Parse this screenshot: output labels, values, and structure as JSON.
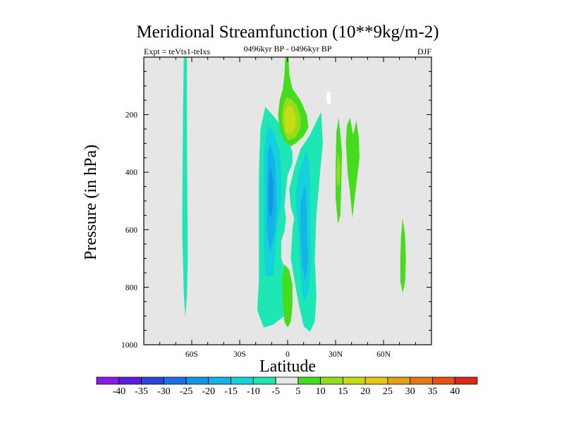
{
  "chart_data": {
    "type": "contour",
    "title": "Meridional Streamfunction (10**9kg/m-2)",
    "subtitle_left": "Expt = teVts1-teIxs",
    "subtitle_center": "0496kyr BP - 0496kyr BP",
    "subtitle_right": "DJF",
    "xlabel": "Latitude",
    "ylabel": "Pressure (in hPa)",
    "xlim": [
      -90,
      90
    ],
    "ylim": [
      1000,
      0
    ],
    "y_reversed": true,
    "x_ticks": [
      {
        "value": -60,
        "label": "60S"
      },
      {
        "value": -30,
        "label": "30S"
      },
      {
        "value": 0,
        "label": "0"
      },
      {
        "value": 30,
        "label": "30N"
      },
      {
        "value": 60,
        "label": "60N"
      }
    ],
    "y_ticks": [
      {
        "value": 200,
        "label": "200"
      },
      {
        "value": 400,
        "label": "400"
      },
      {
        "value": 600,
        "label": "600"
      },
      {
        "value": 800,
        "label": "800"
      },
      {
        "value": 1000,
        "label": "1000"
      }
    ],
    "background_color": "#e6e6e6",
    "colorbar": {
      "labels": [
        "-40",
        "-35",
        "-30",
        "-25",
        "-20",
        "-15",
        "-10",
        "-5",
        "5",
        "10",
        "15",
        "20",
        "25",
        "30",
        "35",
        "40"
      ],
      "colors": [
        "#8a1ae6",
        "#5a1edc",
        "#2a46dc",
        "#1e6ee6",
        "#1496e6",
        "#14b4e6",
        "#14d2dc",
        "#1ee6b4",
        "#e6e6e6",
        "#46dc1e",
        "#96dc1e",
        "#c8dc14",
        "#e6c814",
        "#e6a014",
        "#e67814",
        "#e65014",
        "#dc2814"
      ]
    },
    "features": [
      {
        "name": "neg-column-60S",
        "level": "-5 to -10",
        "color": "#1ee6b4",
        "points": [
          [
            -65,
            0
          ],
          [
            -63,
            0
          ],
          [
            -63,
            250
          ],
          [
            -62.5,
            700
          ],
          [
            -63,
            830
          ],
          [
            -64,
            907
          ],
          [
            -65,
            820
          ],
          [
            -66,
            600
          ],
          [
            -65.5,
            200
          ]
        ]
      },
      {
        "name": "neg-south-cell-outer",
        "level": "-5 to -10",
        "color": "#1ee6b4",
        "points": [
          [
            -14,
            173
          ],
          [
            -8,
            210
          ],
          [
            -4,
            240
          ],
          [
            0,
            285
          ],
          [
            3,
            330
          ],
          [
            3,
            370
          ],
          [
            0,
            410
          ],
          [
            -1,
            460
          ],
          [
            -2,
            520
          ],
          [
            -1,
            560
          ],
          [
            -2,
            605
          ],
          [
            -4,
            640
          ],
          [
            -4,
            700
          ],
          [
            0,
            760
          ],
          [
            3,
            820
          ],
          [
            2,
            860
          ],
          [
            -2,
            900
          ],
          [
            -9,
            930
          ],
          [
            -15,
            940
          ],
          [
            -19,
            880
          ],
          [
            -18,
            780
          ],
          [
            -18,
            600
          ],
          [
            -18,
            400
          ],
          [
            -17,
            250
          ]
        ]
      },
      {
        "name": "neg-south-cell-mid",
        "level": "-10 to -15",
        "color": "#14d2dc",
        "points": [
          [
            -12,
            235
          ],
          [
            -8,
            270
          ],
          [
            -5,
            330
          ],
          [
            -4,
            400
          ],
          [
            -4,
            500
          ],
          [
            -6,
            570
          ],
          [
            -7,
            620
          ],
          [
            -8,
            690
          ],
          [
            -9,
            760
          ],
          [
            -14,
            760
          ],
          [
            -15,
            650
          ],
          [
            -15,
            500
          ],
          [
            -15,
            330
          ]
        ]
      },
      {
        "name": "neg-south-cell-inner",
        "level": "-15 to -20",
        "color": "#14b4e6",
        "points": [
          [
            -11,
            300
          ],
          [
            -8,
            360
          ],
          [
            -7,
            450
          ],
          [
            -7,
            540
          ],
          [
            -8,
            610
          ],
          [
            -11,
            680
          ],
          [
            -13,
            600
          ],
          [
            -13,
            450
          ],
          [
            -12.5,
            330
          ]
        ]
      },
      {
        "name": "neg-south-cell-core",
        "level": "-20 to -25",
        "color": "#1496e6",
        "points": [
          [
            -11,
            380
          ],
          [
            -9,
            430
          ],
          [
            -9,
            500
          ],
          [
            -10,
            560
          ],
          [
            -12,
            540
          ],
          [
            -12,
            450
          ]
        ]
      },
      {
        "name": "neg-north-cell-outer",
        "level": "-5 to -10",
        "color": "#1ee6b4",
        "points": [
          [
            21,
            190
          ],
          [
            22,
            300
          ],
          [
            20,
            420
          ],
          [
            18,
            550
          ],
          [
            17,
            700
          ],
          [
            18,
            830
          ],
          [
            17,
            920
          ],
          [
            14,
            955
          ],
          [
            10,
            935
          ],
          [
            7,
            860
          ],
          [
            5,
            800
          ],
          [
            2,
            700
          ],
          [
            3,
            600
          ],
          [
            4,
            560
          ],
          [
            2,
            520
          ],
          [
            1,
            460
          ],
          [
            4,
            390
          ],
          [
            8,
            320
          ],
          [
            14,
            270
          ]
        ]
      },
      {
        "name": "neg-north-cell-mid",
        "level": "-10 to -15",
        "color": "#14d2dc",
        "points": [
          [
            12,
            320
          ],
          [
            14,
            400
          ],
          [
            14,
            500
          ],
          [
            14,
            600
          ],
          [
            15,
            700
          ],
          [
            13,
            820
          ],
          [
            10,
            850
          ],
          [
            8,
            760
          ],
          [
            7,
            650
          ],
          [
            6,
            560
          ],
          [
            5,
            480
          ],
          [
            7,
            400
          ]
        ]
      },
      {
        "name": "neg-north-cell-inner",
        "level": "-15 to -20",
        "color": "#14b4e6",
        "points": [
          [
            11,
            440
          ],
          [
            12,
            530
          ],
          [
            12,
            620
          ],
          [
            13,
            700
          ],
          [
            11,
            780
          ],
          [
            9,
            720
          ],
          [
            8,
            600
          ],
          [
            8,
            510
          ]
        ]
      },
      {
        "name": "pos-column-equator",
        "level": "5 to 10",
        "color": "#46dc1e",
        "points": [
          [
            -1.5,
            0
          ],
          [
            0.5,
            0
          ],
          [
            1,
            60
          ],
          [
            3,
            110
          ],
          [
            8,
            150
          ],
          [
            12,
            200
          ],
          [
            13,
            245
          ],
          [
            10,
            275
          ],
          [
            5,
            300
          ],
          [
            2,
            310
          ],
          [
            -2,
            290
          ],
          [
            -5,
            250
          ],
          [
            -6,
            200
          ],
          [
            -5,
            150
          ],
          [
            -3,
            110
          ],
          [
            -2,
            60
          ]
        ]
      },
      {
        "name": "pos-equator-mid",
        "level": "10 to 15",
        "color": "#96dc1e",
        "points": [
          [
            -1,
            140
          ],
          [
            2,
            145
          ],
          [
            6,
            170
          ],
          [
            8,
            205
          ],
          [
            8,
            245
          ],
          [
            5,
            280
          ],
          [
            0,
            290
          ],
          [
            -2,
            265
          ],
          [
            -3.5,
            225
          ],
          [
            -3,
            175
          ]
        ]
      },
      {
        "name": "pos-equator-core",
        "level": "15 to 20",
        "color": "#c8dc14",
        "points": [
          [
            0,
            165
          ],
          [
            3,
            175
          ],
          [
            5,
            205
          ],
          [
            5,
            240
          ],
          [
            2,
            265
          ],
          [
            -1,
            260
          ],
          [
            -2,
            230
          ],
          [
            -2,
            195
          ]
        ]
      },
      {
        "name": "pos-equator-lower",
        "level": "5 to 10",
        "color": "#46dc1e",
        "points": [
          [
            -2,
            720
          ],
          [
            1,
            740
          ],
          [
            3,
            790
          ],
          [
            3,
            870
          ],
          [
            2,
            920
          ],
          [
            0,
            940
          ],
          [
            -2,
            920
          ],
          [
            -3,
            860
          ],
          [
            -3.5,
            780
          ]
        ]
      },
      {
        "name": "pos-30N-strip",
        "level": "5 to 10",
        "color": "#46dc1e",
        "points": [
          [
            32,
            210
          ],
          [
            34,
            330
          ],
          [
            33.5,
            460
          ],
          [
            33,
            550
          ],
          [
            31.5,
            580
          ],
          [
            30,
            490
          ],
          [
            30,
            380
          ],
          [
            30.5,
            260
          ]
        ]
      },
      {
        "name": "pos-30N-core",
        "level": "10 to 15",
        "color": "#96dc1e",
        "points": [
          [
            31.5,
            330
          ],
          [
            33,
            380
          ],
          [
            32.5,
            440
          ],
          [
            31,
            450
          ],
          [
            30.5,
            400
          ]
        ]
      },
      {
        "name": "pos-36-44N-strips",
        "level": "5 to 10",
        "color": "#46dc1e",
        "points": [
          [
            39,
            210
          ],
          [
            41,
            270
          ],
          [
            43,
            220
          ],
          [
            44.5,
            280
          ],
          [
            45,
            350
          ],
          [
            43,
            440
          ],
          [
            40.5,
            560
          ],
          [
            39,
            470
          ],
          [
            37.5,
            400
          ],
          [
            36.5,
            300
          ],
          [
            37,
            240
          ]
        ]
      },
      {
        "name": "pos-72N-blob",
        "level": "5 to 10",
        "color": "#46dc1e",
        "points": [
          [
            72,
            560
          ],
          [
            73.5,
            620
          ],
          [
            74,
            700
          ],
          [
            73.5,
            780
          ],
          [
            72,
            820
          ],
          [
            70.5,
            780
          ],
          [
            70.5,
            700
          ],
          [
            71,
            620
          ]
        ]
      },
      {
        "name": "pos-white-gap-30N",
        "level": "-5 to 5",
        "color": "#ffffff",
        "points": [
          [
            25,
            120
          ],
          [
            27,
            125
          ],
          [
            27,
            160
          ],
          [
            25,
            165
          ],
          [
            24,
            140
          ]
        ]
      }
    ]
  }
}
